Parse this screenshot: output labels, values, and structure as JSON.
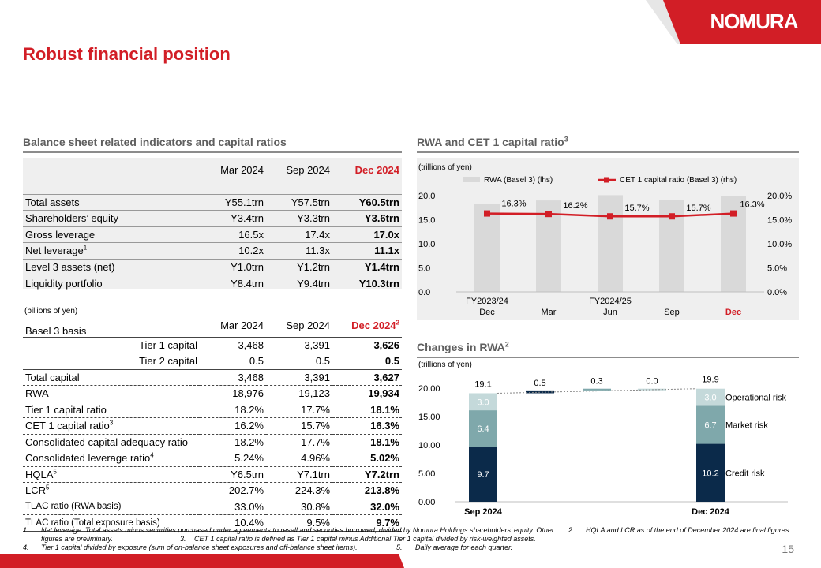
{
  "brand": {
    "name": "NOMURA",
    "accent": "#d21e26"
  },
  "page_title": "Robust financial position",
  "page_number": "15",
  "balance_sheet": {
    "title": "Balance sheet related indicators and capital ratios",
    "columns": [
      "Mar 2024",
      "Sep 2024",
      "Dec 2024"
    ],
    "rows": [
      {
        "label": "Total assets",
        "sup": "",
        "values": [
          "Y55.1trn",
          "Y57.5trn",
          "Y60.5trn"
        ]
      },
      {
        "label": "Shareholders’ equity",
        "sup": "",
        "values": [
          "Y3.4trn",
          "Y3.3trn",
          "Y3.6trn"
        ]
      },
      {
        "label": "Gross leverage",
        "sup": "",
        "values": [
          "16.5x",
          "17.4x",
          "17.0x"
        ]
      },
      {
        "label": "Net leverage",
        "sup": "1",
        "values": [
          "10.2x",
          "11.3x",
          "11.1x"
        ]
      },
      {
        "label": "Level 3 assets (net)",
        "sup": "",
        "values": [
          "Y1.0trn",
          "Y1.2trn",
          "Y1.4trn"
        ]
      },
      {
        "label": "Liquidity portfolio",
        "sup": "",
        "values": [
          "Y8.4trn",
          "Y9.4trn",
          "Y10.3trn"
        ]
      }
    ]
  },
  "basel3": {
    "unit_note": "(billions of yen)",
    "header_label": "Basel 3 basis",
    "columns": [
      "Mar 2024",
      "Sep 2024",
      "Dec 2024"
    ],
    "dec_sup": "2",
    "sub_rows": [
      {
        "label": "Tier 1 capital",
        "values": [
          "3,468",
          "3,391",
          "3,626"
        ]
      },
      {
        "label": "Tier 2 capital",
        "values": [
          "0.5",
          "0.5",
          "0.5"
        ]
      }
    ],
    "rows": [
      {
        "label": "Total capital",
        "sup": "",
        "values": [
          "3,468",
          "3,391",
          "3,627"
        ]
      },
      {
        "label": "RWA",
        "sup": "",
        "values": [
          "18,976",
          "19,123",
          "19,934"
        ]
      },
      {
        "label": "Tier 1 capital ratio",
        "sup": "",
        "values": [
          "18.2%",
          "17.7%",
          "18.1%"
        ]
      },
      {
        "label": "CET 1 capital ratio",
        "sup": "3",
        "values": [
          "16.2%",
          "15.7%",
          "16.3%"
        ]
      },
      {
        "label": "Consolidated capital adequacy ratio",
        "sup": "",
        "values": [
          "18.2%",
          "17.7%",
          "18.1%"
        ]
      },
      {
        "label": "Consolidated leverage ratio",
        "sup": "4",
        "values": [
          "5.24%",
          "4.96%",
          "5.02%"
        ]
      },
      {
        "label": "HQLA",
        "sup": "5",
        "values": [
          "Y6.5trn",
          "Y7.1trn",
          "Y7.2trn"
        ]
      },
      {
        "label": "LCR",
        "sup": "5",
        "values": [
          "202.7%",
          "224.3%",
          "213.8%"
        ]
      },
      {
        "label": "TLAC ratio (RWA basis)",
        "sup": "",
        "values": [
          "33.0%",
          "30.8%",
          "32.0%"
        ],
        "small": true
      },
      {
        "label": "TLAC ratio (Total exposure basis)",
        "sup": "",
        "values": [
          "10.4%",
          "9.5%",
          "9.7%"
        ],
        "small": true
      }
    ]
  },
  "rwa_section": {
    "title": "RWA and CET 1 capital ratio",
    "title_sup": "3"
  },
  "changes_section": {
    "title": "Changes in RWA",
    "title_sup": "2"
  },
  "chart_data": [
    {
      "type": "bar",
      "unit_note": "(trillions of yen)",
      "categories": [
        "FY2023/24 Dec",
        "Mar",
        "FY2024/25 Jun",
        "Sep",
        "Dec"
      ],
      "category_lines": [
        [
          "FY2023/24",
          "Dec"
        ],
        [
          "",
          "Mar"
        ],
        [
          "FY2024/25",
          "Jun"
        ],
        [
          "",
          "Sep"
        ],
        [
          "",
          "Dec"
        ]
      ],
      "series": [
        {
          "name": "RWA (Basel 3) (lhs)",
          "type": "bar",
          "axis": "left",
          "values": [
            18.3,
            19.0,
            20.1,
            19.1,
            19.9
          ],
          "color": "#d9d9d9"
        },
        {
          "name": "CET 1 capital ratio (Basel 3) (rhs)",
          "type": "line",
          "axis": "right",
          "values": [
            16.3,
            16.2,
            15.7,
            15.7,
            16.3
          ],
          "labels": [
            "16.3%",
            "16.2%",
            "15.7%",
            "15.7%",
            "16.3%"
          ],
          "color": "#d21e26"
        }
      ],
      "y_left": {
        "min": 0,
        "max": 20,
        "ticks": [
          "0.0",
          "5.0",
          "10.0",
          "15.0",
          "20.0"
        ]
      },
      "y_right": {
        "min": 0,
        "max": 20,
        "ticks": [
          "0.0%",
          "5.0%",
          "10.0%",
          "15.0%",
          "20.0%"
        ]
      },
      "highlight_last_category": true,
      "grid": false,
      "legend_position": "top"
    },
    {
      "type": "bar",
      "subtype": "waterfall",
      "unit_note": "(trillions of yen)",
      "categories": [
        "Sep 2024",
        "",
        "",
        "",
        "Dec 2024"
      ],
      "y_axis": {
        "min": 0,
        "max": 20,
        "ticks": [
          "0.00",
          "5.00",
          "10.00",
          "15.00",
          "20.00"
        ]
      },
      "start": {
        "total": 19.1,
        "total_label": "19.1",
        "segments": [
          {
            "name": "Credit risk",
            "value": 9.7,
            "label": "9.7",
            "color": "#0b2a4a"
          },
          {
            "name": "Market risk",
            "value": 6.4,
            "label": "6.4",
            "color": "#7fa8ab"
          },
          {
            "name": "Operational risk",
            "value": 3.0,
            "label": "3.0",
            "color": "#c4d9da"
          }
        ]
      },
      "changes": [
        {
          "value": 0.5,
          "label": "0.5",
          "color": "#0b2a4a"
        },
        {
          "value": 0.3,
          "label": "0.3",
          "color": "#7fa8ab"
        },
        {
          "value": 0.0,
          "label": "0.0",
          "color": "#c4d9da"
        }
      ],
      "end": {
        "total": 19.9,
        "total_label": "19.9",
        "segments": [
          {
            "name": "Credit risk",
            "value": 10.2,
            "label": "10.2",
            "color": "#0b2a4a"
          },
          {
            "name": "Market risk",
            "value": 6.7,
            "label": "6.7",
            "color": "#7fa8ab"
          },
          {
            "name": "Operational risk",
            "value": 3.0,
            "label": "3.0",
            "color": "#c4d9da"
          }
        ]
      },
      "legend": [
        "Operational risk",
        "Market risk",
        "Credit risk"
      ]
    }
  ],
  "footnotes": {
    "n1": "1.",
    "t1": "Net leverage: Total assets minus securities purchased under agreements to resell and securities borrowed, divided by Nomura Holdings shareholders’ equity. Other figures are preliminary.",
    "n2": "2.",
    "t2": "HQLA and LCR as of the end of December 2024 are final figures.",
    "n3": "3.",
    "t3": "CET 1 capital ratio is defined as Tier 1 capital minus Additional Tier 1 capital divided by risk-weighted assets.",
    "n4": "4.",
    "t4": "Tier 1 capital divided by exposure (sum of on-balance sheet exposures and off-balance sheet items).",
    "n5": "5.",
    "t5": "Daily average for each quarter."
  }
}
